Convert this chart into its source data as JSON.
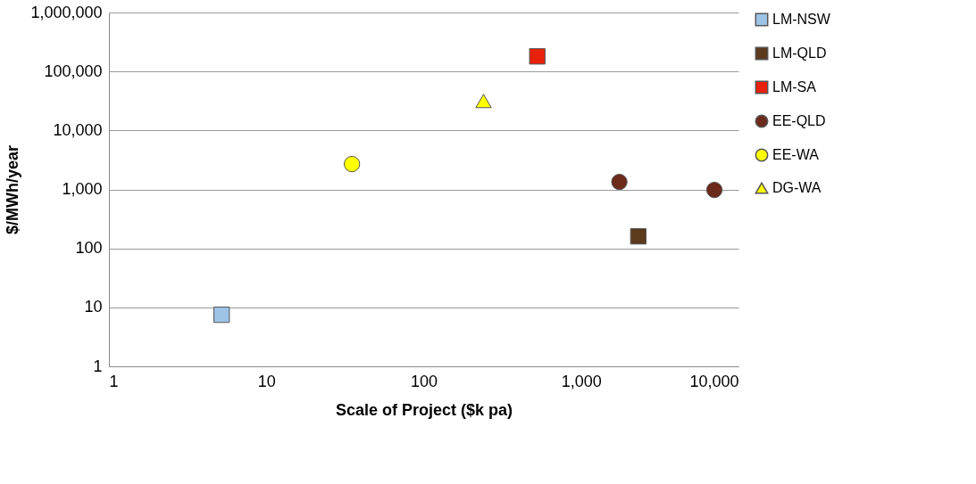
{
  "chart_data": {
    "type": "scatter",
    "xlabel": "Scale of Project ($k pa)",
    "ylabel": "$/MWh/year",
    "log": "xy",
    "grid": "y",
    "legend": "right",
    "xlim": [
      1,
      10000
    ],
    "ylim": [
      1,
      1000000
    ],
    "xticks": [
      1,
      10,
      100,
      {
        "value": 1000,
        "label": "1,000"
      },
      {
        "value": 10000,
        "label": "10,000"
      }
    ],
    "yticks": [
      1,
      10,
      100,
      {
        "value": 1000,
        "label": "1,000"
      },
      {
        "value": 10000,
        "label": "10,000"
      },
      {
        "value": 100000,
        "label": "100,000"
      },
      {
        "value": 1000000,
        "label": "1,000,000"
      }
    ],
    "series": [
      {
        "name": "LM-NSW",
        "color": "#9dc3e6",
        "marker": "square",
        "x": [
          5.2
        ],
        "values": [
          7.5
        ]
      },
      {
        "name": "LM-QLD",
        "color": "#5b3a1e",
        "marker": "square",
        "x": [
          2310
        ],
        "values": [
          160
        ]
      },
      {
        "name": "LM-SA",
        "color": "#e8220a",
        "marker": "square",
        "x": [
          527
        ],
        "values": [
          180000
        ]
      },
      {
        "name": "EE-QLD",
        "color": "#6b2a1a",
        "marker": "circle",
        "x": [
          1750,
          7030
        ],
        "values": [
          1340,
          980
        ]
      },
      {
        "name": "EE-WA",
        "color": "#ffff00",
        "marker": "circle",
        "x": [
          35
        ],
        "values": [
          2690
        ]
      },
      {
        "name": "DG-WA",
        "color": "#ffff00",
        "marker": "triangle",
        "x": [
          240
        ],
        "values": [
          31600
        ]
      }
    ]
  }
}
